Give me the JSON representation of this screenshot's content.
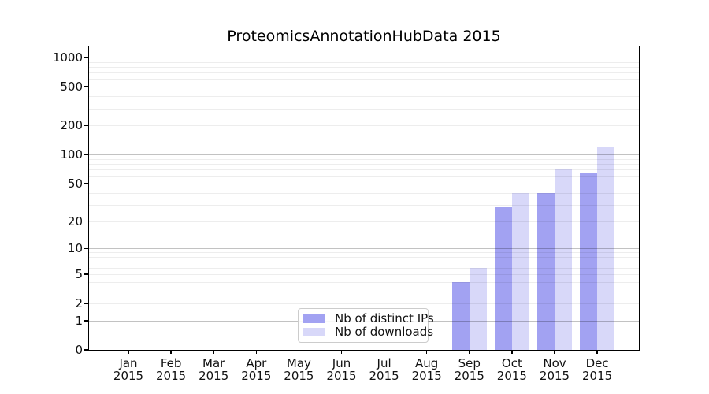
{
  "chart_data": {
    "type": "bar",
    "title": "ProteomicsAnnotationHubData 2015",
    "categories": [
      "Jan",
      "Feb",
      "Mar",
      "Apr",
      "May",
      "Jun",
      "Jul",
      "Aug",
      "Sep",
      "Oct",
      "Nov",
      "Dec"
    ],
    "category_year": "2015",
    "series": [
      {
        "name": "Nb of distinct IPs",
        "color": "#a2a2f2",
        "values": [
          0,
          0,
          0,
          0,
          0,
          0,
          0,
          0,
          4,
          28,
          40,
          65
        ]
      },
      {
        "name": "Nb of downloads",
        "color": "#d8d8f9",
        "values": [
          0,
          0,
          0,
          0,
          0,
          0,
          0,
          0,
          6,
          40,
          70,
          120
        ]
      }
    ],
    "y_ticks": [
      0,
      1,
      2,
      5,
      10,
      20,
      50,
      100,
      200,
      500,
      1000
    ],
    "scale": "log1p",
    "ylim": [
      0,
      1300
    ],
    "xlabel": "",
    "ylabel": "",
    "grid": "horizontal: light minor lines (2-9 per decade), darker lines at decades",
    "legend_position": "bottom-center",
    "colors": {
      "distinct_ips_bar": "#a2a2f2",
      "downloads_bar": "#d8d8f9",
      "major_gridline": "#c3c3c3",
      "minor_gridline": "#ececec",
      "axis_frame": "#000000",
      "background": "#ffffff"
    }
  }
}
